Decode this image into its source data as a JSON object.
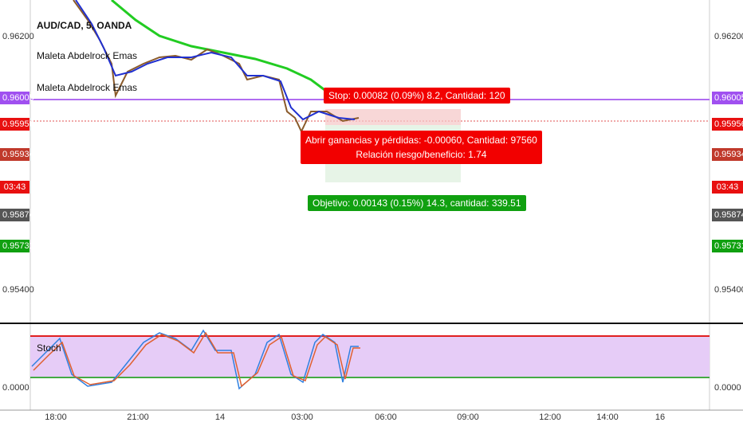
{
  "header": {
    "symbol": "AUD/CAD, 5, OANDA",
    "indicators": [
      "Maleta Abdelrock Emas",
      "Maleta Abdelrock Emas"
    ]
  },
  "price_labels": [
    "0.96200",
    "0.96005",
    "0.95956",
    "0.95934",
    "03:43",
    "0.95874",
    "0.95731",
    "0.95400",
    "0.0000"
  ],
  "position_tool": {
    "stop": "Stop: 0.00082 (0.09%) 8.2, Cantidad: 120",
    "pnl": "Abrir ganancias y pérdidas: -0.00060, Cantidad: 97560",
    "ratio": "Relación riesgo/beneficio: 1.74",
    "target": "Objetivo: 0.00143 (0.15%) 14.3, cantidad: 339.51"
  },
  "stoch_label": "Stoch",
  "time_labels": [
    "18:00",
    "21:00",
    "14",
    "03:00",
    "06:00",
    "09:00",
    "12:00",
    "14:00",
    "16"
  ]
}
